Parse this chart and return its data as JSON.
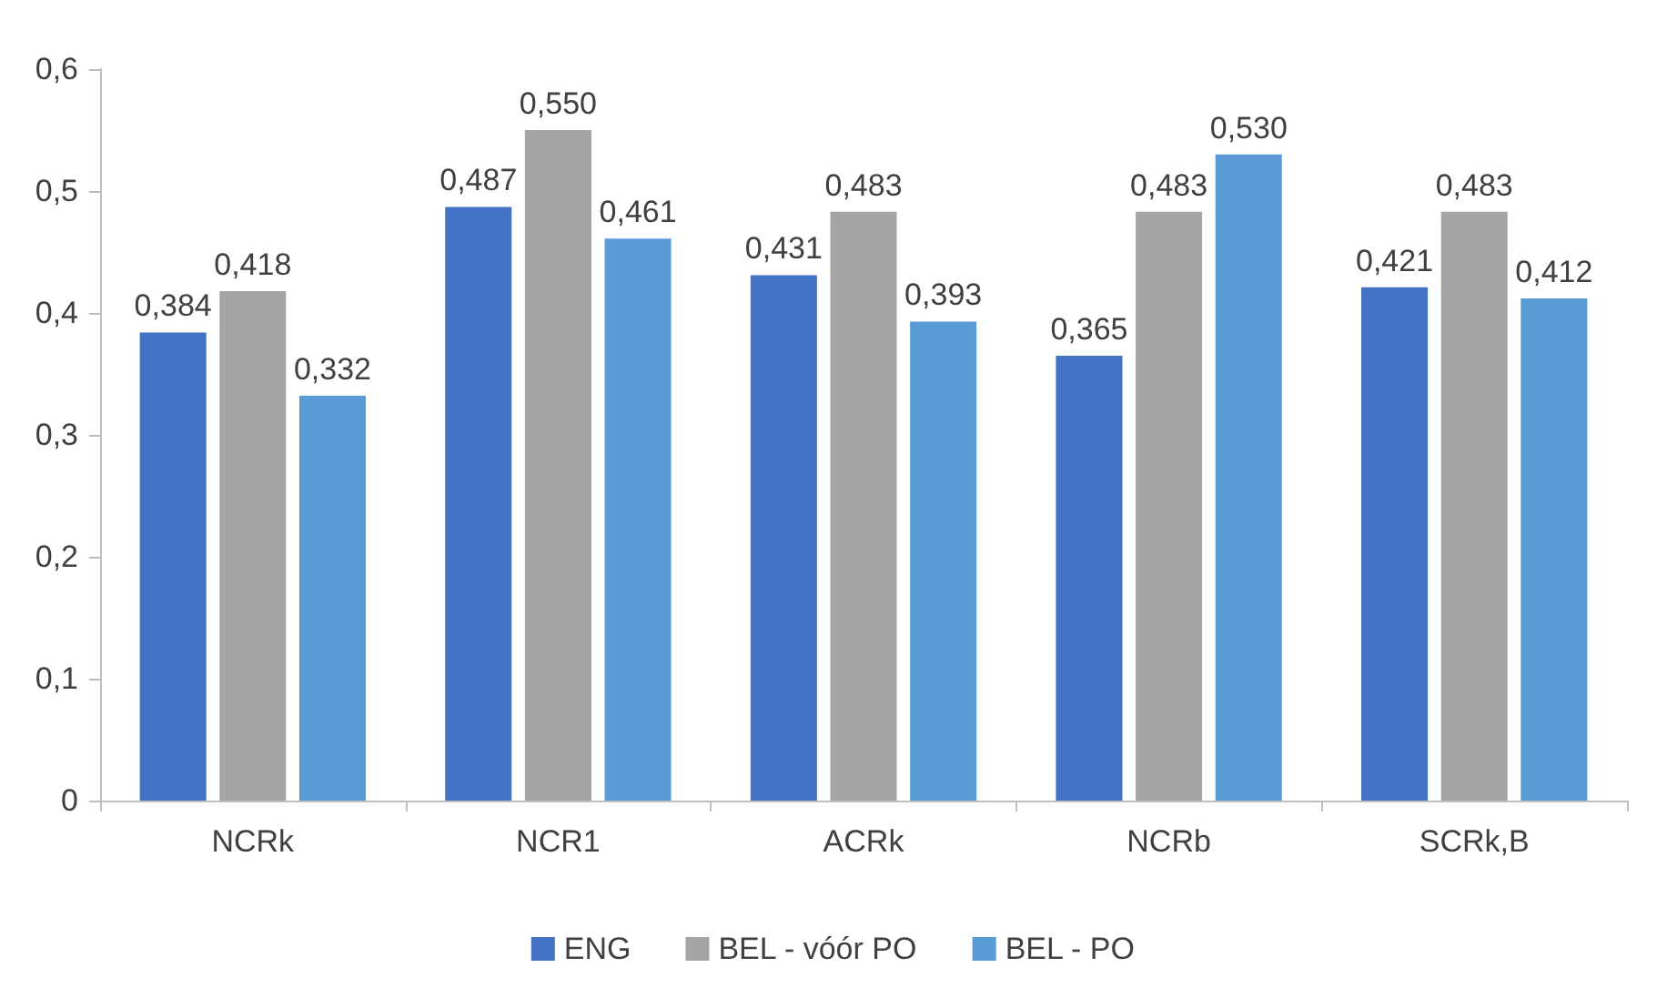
{
  "chart_data": {
    "type": "bar",
    "categories": [
      "NCRk",
      "NCR1",
      "ACRk",
      "NCRb",
      "SCRk,B"
    ],
    "series": [
      {
        "name": "ENG",
        "color": "#4472c4",
        "values": [
          0.384,
          0.487,
          0.431,
          0.365,
          0.421
        ],
        "value_labels": [
          "0,384",
          "0,487",
          "0,431",
          "0,365",
          "0,421"
        ]
      },
      {
        "name": "BEL - vóór PO",
        "color": "#a5a5a5",
        "values": [
          0.418,
          0.55,
          0.483,
          0.483,
          0.483
        ],
        "value_labels": [
          "0,418",
          "0,550",
          "0,483",
          "0,483",
          "0,483"
        ]
      },
      {
        "name": "BEL - PO",
        "color": "#5b9bd5",
        "values": [
          0.332,
          0.461,
          0.393,
          0.53,
          0.412
        ],
        "value_labels": [
          "0,332",
          "0,461",
          "0,393",
          "0,530",
          "0,412"
        ]
      }
    ],
    "ylim": [
      0,
      0.6
    ],
    "yticks": [
      {
        "value": 0,
        "label": "0"
      },
      {
        "value": 0.1,
        "label": "0,1"
      },
      {
        "value": 0.2,
        "label": "0,2"
      },
      {
        "value": 0.3,
        "label": "0,3"
      },
      {
        "value": 0.4,
        "label": "0,4"
      },
      {
        "value": 0.5,
        "label": "0,5"
      },
      {
        "value": 0.6,
        "label": "0,6"
      }
    ],
    "grid": false,
    "legend": "bottom"
  }
}
